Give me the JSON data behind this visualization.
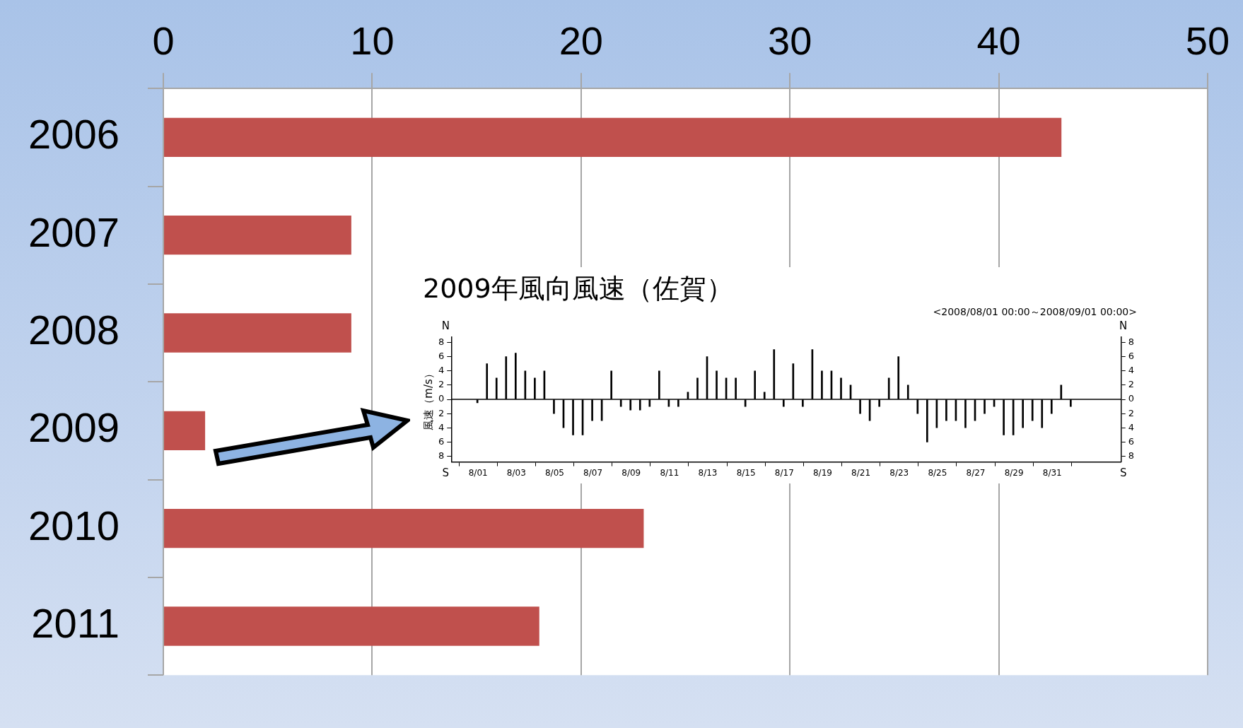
{
  "chart_data": [
    {
      "type": "bar",
      "orientation": "horizontal",
      "categories": [
        "2006",
        "2007",
        "2008",
        "2009",
        "2010",
        "2011"
      ],
      "values": [
        43,
        9,
        9,
        2,
        23,
        18
      ],
      "color": "#c0504d",
      "xlim": [
        0,
        50
      ],
      "xticks": [
        0,
        10,
        20,
        30,
        40,
        50
      ],
      "grid": "x",
      "legend": false
    },
    {
      "type": "bar",
      "title": "2009年風向風速（佐賀）",
      "subtitle": "<2008/08/01 00:00～2008/09/01 00:00>",
      "ylabel": "風速（m/s）",
      "x": [
        "--08-01T00:00",
        "--08-01T12:00",
        "--08-02T00:00",
        "--08-02T12:00",
        "--08-03T00:00",
        "--08-03T12:00",
        "--08-04T00:00",
        "--08-04T12:00",
        "--08-05T00:00",
        "--08-05T12:00",
        "--08-06T00:00",
        "--08-06T12:00",
        "--08-07T00:00",
        "--08-07T12:00",
        "--08-08T00:00",
        "--08-08T12:00",
        "--08-09T00:00",
        "--08-09T12:00",
        "--08-10T00:00",
        "--08-10T12:00",
        "--08-11T00:00",
        "--08-11T12:00",
        "--08-12T00:00",
        "--08-12T12:00",
        "--08-13T00:00",
        "--08-13T12:00",
        "--08-14T00:00",
        "--08-14T12:00",
        "--08-15T00:00",
        "--08-15T12:00",
        "--08-16T00:00",
        "--08-16T12:00",
        "--08-17T00:00",
        "--08-17T12:00",
        "--08-18T00:00",
        "--08-18T12:00",
        "--08-19T00:00",
        "--08-19T12:00",
        "--08-20T00:00",
        "--08-20T12:00",
        "--08-21T00:00",
        "--08-21T12:00",
        "--08-22T00:00",
        "--08-22T12:00",
        "--08-23T00:00",
        "--08-23T12:00",
        "--08-24T00:00",
        "--08-24T12:00",
        "--08-25T00:00",
        "--08-25T12:00",
        "--08-26T00:00",
        "--08-26T12:00",
        "--08-27T00:00",
        "--08-27T12:00",
        "--08-28T00:00",
        "--08-28T12:00",
        "--08-29T00:00",
        "--08-29T12:00",
        "--08-30T00:00",
        "--08-30T12:00",
        "--08-31T00:00",
        "--08-31T12:00",
        "--09-01T00:00"
      ],
      "values": [
        -0.5,
        5,
        3,
        6,
        6.5,
        4,
        3,
        4,
        -2,
        -4,
        -5,
        -5,
        -3,
        -3,
        4,
        -1,
        -1.5,
        -1.5,
        -1,
        4,
        -1,
        -1,
        1,
        3,
        6,
        4,
        3,
        3,
        -1,
        4,
        1,
        7,
        -1,
        5,
        -1,
        7,
        4,
        4,
        3,
        2,
        -2,
        -3,
        -1,
        3,
        6,
        2,
        -2,
        -6,
        -4,
        -3,
        -3,
        -4,
        -3,
        -2,
        -1,
        -5,
        -5,
        -4,
        -3,
        -4,
        -2,
        2,
        -1
      ],
      "color": "#000000",
      "xlim": [
        "--07-30T14:24",
        "--09-03T14:24"
      ],
      "xticks": [
        {
          "value": "--08-01",
          "label": "8/01"
        },
        {
          "value": "--08-03",
          "label": "8/03"
        },
        {
          "value": "--08-05",
          "label": "8/05"
        },
        {
          "value": "--08-07",
          "label": "8/07"
        },
        {
          "value": "--08-09",
          "label": "8/09"
        },
        {
          "value": "--08-11",
          "label": "8/11"
        },
        {
          "value": "--08-13",
          "label": "8/13"
        },
        {
          "value": "--08-15",
          "label": "8/15"
        },
        {
          "value": "--08-17",
          "label": "8/17"
        },
        {
          "value": "--08-19",
          "label": "8/19"
        },
        {
          "value": "--08-21",
          "label": "8/21"
        },
        {
          "value": "--08-23",
          "label": "8/23"
        },
        {
          "value": "--08-25",
          "label": "8/25"
        },
        {
          "value": "--08-27",
          "label": "8/27"
        },
        {
          "value": "--08-29",
          "label": "8/29"
        },
        {
          "value": "--08-31",
          "label": "8/31"
        }
      ],
      "ylim": [
        -8.8,
        8.8
      ],
      "yticks": [
        {
          "value": -8,
          "label": "8"
        },
        {
          "value": -6,
          "label": "6"
        },
        {
          "value": -4,
          "label": "4"
        },
        {
          "value": -2,
          "label": "2"
        },
        0,
        2,
        4,
        6,
        8
      ],
      "y2lim": [
        -8.8,
        8.8
      ],
      "y2ticks": [
        {
          "value": -8,
          "label": "8"
        },
        {
          "value": -6,
          "label": "6"
        },
        {
          "value": -4,
          "label": "4"
        },
        {
          "value": -2,
          "label": "2"
        },
        0,
        2,
        4,
        6,
        8
      ],
      "annotations": [
        "N",
        "S",
        "N",
        "S"
      ],
      "legend": false
    }
  ]
}
